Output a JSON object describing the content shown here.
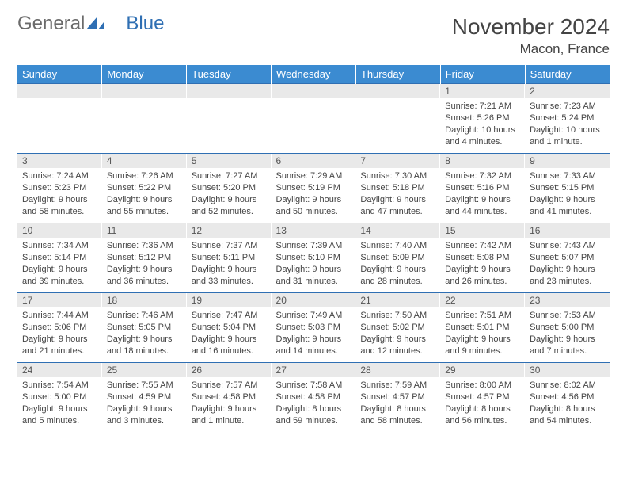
{
  "brand": {
    "general": "General",
    "blue": "Blue"
  },
  "header": {
    "month": "November 2024",
    "location": "Macon, France"
  },
  "colors": {
    "header_bg": "#3b8bd1",
    "daynum_bg": "#e9e9e9",
    "rule": "#2f6fb3",
    "text": "#444444",
    "logo_gray": "#6b6b6b",
    "logo_blue": "#2f6fb3"
  },
  "day_names": [
    "Sunday",
    "Monday",
    "Tuesday",
    "Wednesday",
    "Thursday",
    "Friday",
    "Saturday"
  ],
  "weeks": [
    [
      {
        "n": "",
        "empty": true
      },
      {
        "n": "",
        "empty": true
      },
      {
        "n": "",
        "empty": true
      },
      {
        "n": "",
        "empty": true
      },
      {
        "n": "",
        "empty": true
      },
      {
        "n": "1",
        "sr": "Sunrise: 7:21 AM",
        "ss": "Sunset: 5:26 PM",
        "dl": "Daylight: 10 hours and 4 minutes."
      },
      {
        "n": "2",
        "sr": "Sunrise: 7:23 AM",
        "ss": "Sunset: 5:24 PM",
        "dl": "Daylight: 10 hours and 1 minute."
      }
    ],
    [
      {
        "n": "3",
        "sr": "Sunrise: 7:24 AM",
        "ss": "Sunset: 5:23 PM",
        "dl": "Daylight: 9 hours and 58 minutes."
      },
      {
        "n": "4",
        "sr": "Sunrise: 7:26 AM",
        "ss": "Sunset: 5:22 PM",
        "dl": "Daylight: 9 hours and 55 minutes."
      },
      {
        "n": "5",
        "sr": "Sunrise: 7:27 AM",
        "ss": "Sunset: 5:20 PM",
        "dl": "Daylight: 9 hours and 52 minutes."
      },
      {
        "n": "6",
        "sr": "Sunrise: 7:29 AM",
        "ss": "Sunset: 5:19 PM",
        "dl": "Daylight: 9 hours and 50 minutes."
      },
      {
        "n": "7",
        "sr": "Sunrise: 7:30 AM",
        "ss": "Sunset: 5:18 PM",
        "dl": "Daylight: 9 hours and 47 minutes."
      },
      {
        "n": "8",
        "sr": "Sunrise: 7:32 AM",
        "ss": "Sunset: 5:16 PM",
        "dl": "Daylight: 9 hours and 44 minutes."
      },
      {
        "n": "9",
        "sr": "Sunrise: 7:33 AM",
        "ss": "Sunset: 5:15 PM",
        "dl": "Daylight: 9 hours and 41 minutes."
      }
    ],
    [
      {
        "n": "10",
        "sr": "Sunrise: 7:34 AM",
        "ss": "Sunset: 5:14 PM",
        "dl": "Daylight: 9 hours and 39 minutes."
      },
      {
        "n": "11",
        "sr": "Sunrise: 7:36 AM",
        "ss": "Sunset: 5:12 PM",
        "dl": "Daylight: 9 hours and 36 minutes."
      },
      {
        "n": "12",
        "sr": "Sunrise: 7:37 AM",
        "ss": "Sunset: 5:11 PM",
        "dl": "Daylight: 9 hours and 33 minutes."
      },
      {
        "n": "13",
        "sr": "Sunrise: 7:39 AM",
        "ss": "Sunset: 5:10 PM",
        "dl": "Daylight: 9 hours and 31 minutes."
      },
      {
        "n": "14",
        "sr": "Sunrise: 7:40 AM",
        "ss": "Sunset: 5:09 PM",
        "dl": "Daylight: 9 hours and 28 minutes."
      },
      {
        "n": "15",
        "sr": "Sunrise: 7:42 AM",
        "ss": "Sunset: 5:08 PM",
        "dl": "Daylight: 9 hours and 26 minutes."
      },
      {
        "n": "16",
        "sr": "Sunrise: 7:43 AM",
        "ss": "Sunset: 5:07 PM",
        "dl": "Daylight: 9 hours and 23 minutes."
      }
    ],
    [
      {
        "n": "17",
        "sr": "Sunrise: 7:44 AM",
        "ss": "Sunset: 5:06 PM",
        "dl": "Daylight: 9 hours and 21 minutes."
      },
      {
        "n": "18",
        "sr": "Sunrise: 7:46 AM",
        "ss": "Sunset: 5:05 PM",
        "dl": "Daylight: 9 hours and 18 minutes."
      },
      {
        "n": "19",
        "sr": "Sunrise: 7:47 AM",
        "ss": "Sunset: 5:04 PM",
        "dl": "Daylight: 9 hours and 16 minutes."
      },
      {
        "n": "20",
        "sr": "Sunrise: 7:49 AM",
        "ss": "Sunset: 5:03 PM",
        "dl": "Daylight: 9 hours and 14 minutes."
      },
      {
        "n": "21",
        "sr": "Sunrise: 7:50 AM",
        "ss": "Sunset: 5:02 PM",
        "dl": "Daylight: 9 hours and 12 minutes."
      },
      {
        "n": "22",
        "sr": "Sunrise: 7:51 AM",
        "ss": "Sunset: 5:01 PM",
        "dl": "Daylight: 9 hours and 9 minutes."
      },
      {
        "n": "23",
        "sr": "Sunrise: 7:53 AM",
        "ss": "Sunset: 5:00 PM",
        "dl": "Daylight: 9 hours and 7 minutes."
      }
    ],
    [
      {
        "n": "24",
        "sr": "Sunrise: 7:54 AM",
        "ss": "Sunset: 5:00 PM",
        "dl": "Daylight: 9 hours and 5 minutes."
      },
      {
        "n": "25",
        "sr": "Sunrise: 7:55 AM",
        "ss": "Sunset: 4:59 PM",
        "dl": "Daylight: 9 hours and 3 minutes."
      },
      {
        "n": "26",
        "sr": "Sunrise: 7:57 AM",
        "ss": "Sunset: 4:58 PM",
        "dl": "Daylight: 9 hours and 1 minute."
      },
      {
        "n": "27",
        "sr": "Sunrise: 7:58 AM",
        "ss": "Sunset: 4:58 PM",
        "dl": "Daylight: 8 hours and 59 minutes."
      },
      {
        "n": "28",
        "sr": "Sunrise: 7:59 AM",
        "ss": "Sunset: 4:57 PM",
        "dl": "Daylight: 8 hours and 58 minutes."
      },
      {
        "n": "29",
        "sr": "Sunrise: 8:00 AM",
        "ss": "Sunset: 4:57 PM",
        "dl": "Daylight: 8 hours and 56 minutes."
      },
      {
        "n": "30",
        "sr": "Sunrise: 8:02 AM",
        "ss": "Sunset: 4:56 PM",
        "dl": "Daylight: 8 hours and 54 minutes."
      }
    ]
  ]
}
